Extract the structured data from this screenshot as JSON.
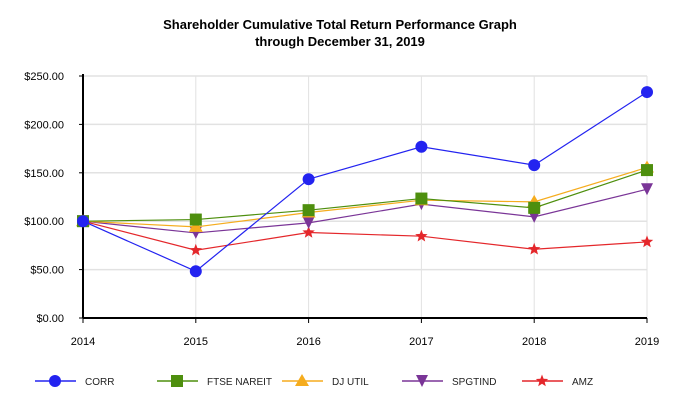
{
  "chart_data": {
    "type": "line",
    "title": "Shareholder Cumulative Total Return Performance Graph",
    "subtitle": "through December 31, 2019",
    "xlabel": "",
    "ylabel": "",
    "categories": [
      "2014",
      "2015",
      "2016",
      "2017",
      "2018",
      "2019"
    ],
    "ylim": [
      0,
      250
    ],
    "yticks": [
      0,
      50,
      100,
      150,
      200,
      250
    ],
    "ytick_labels": [
      "$0.00",
      "$50.00",
      "$100.00",
      "$150.00",
      "$200.00",
      "$250.00"
    ],
    "grid": true,
    "legend_position": "bottom",
    "series": [
      {
        "name": "CORR",
        "color": "#2323f0",
        "marker": "circle",
        "values": [
          100,
          48.3,
          143.4,
          176.9,
          157.9,
          233.4
        ]
      },
      {
        "name": "FTSE NAREIT",
        "color": "#4e8f0e",
        "marker": "square",
        "values": [
          100,
          101.7,
          111.4,
          123.4,
          113.8,
          152.8
        ]
      },
      {
        "name": "DJ UTIL",
        "color": "#f5ac1e",
        "marker": "triangle-up",
        "values": [
          100,
          94.1,
          109.0,
          121.7,
          120.0,
          155.5
        ]
      },
      {
        "name": "SPGTIND",
        "color": "#7a3597",
        "marker": "triangle-down",
        "values": [
          100,
          87.9,
          98.3,
          117.6,
          104.5,
          133.0
        ]
      },
      {
        "name": "AMZ",
        "color": "#e4272b",
        "marker": "star",
        "values": [
          100,
          70.0,
          88.3,
          84.5,
          71.0,
          78.6
        ]
      }
    ]
  }
}
